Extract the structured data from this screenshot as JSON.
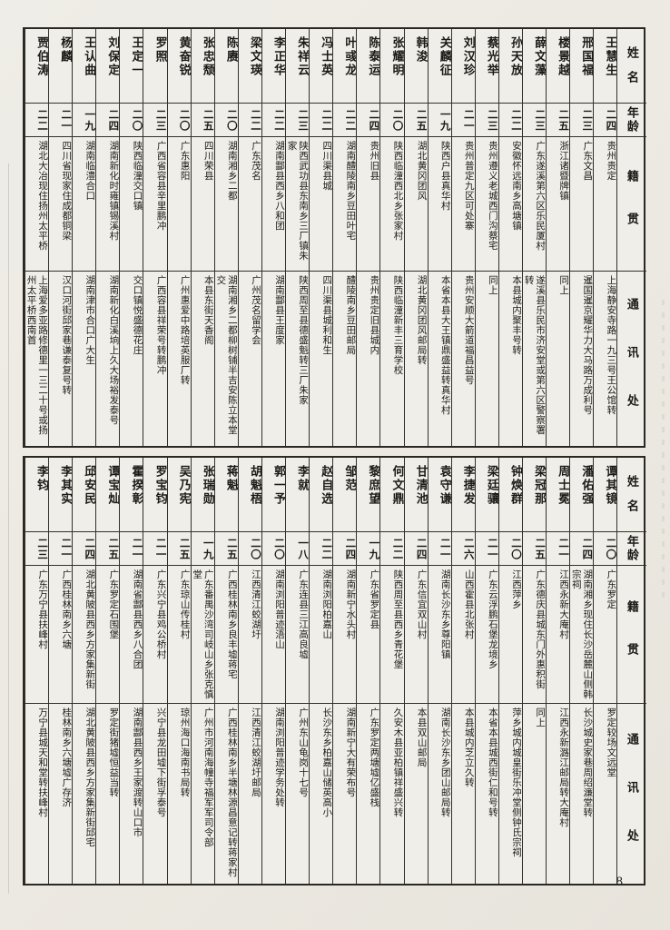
{
  "page": {
    "number": "8"
  },
  "headers": {
    "name": "姓名",
    "age": "年龄",
    "origin": "籍贯",
    "address": "通讯处"
  },
  "sections": [
    {
      "people": [
        {
          "name": "王慧生",
          "age": "二四",
          "origin": "贵州贵定",
          "address": "上海静安寺路一九三号王公馆转"
        },
        {
          "name": "邢国福",
          "age": "二三",
          "origin": "广东文昌",
          "address": "暹国暹京耀华力大马路万成利号"
        },
        {
          "name": "楼景越",
          "age": "二五",
          "origin": "浙江诸暨牌镇",
          "address": "同上"
        },
        {
          "name": "薛文藻",
          "age": "二三",
          "origin": "广东遂溪第六区乐民厦村",
          "address": "遂溪县乐民市济安堂或第六区警察署转"
        },
        {
          "name": "孙天放",
          "age": "二二",
          "origin": "安徽怀远南乡高塘镇",
          "address": "本县城内聚丰号转"
        },
        {
          "name": "蔡光举",
          "age": "二三",
          "origin": "贵州遵义老城西门沟蔡宅",
          "address": "同上"
        },
        {
          "name": "刘汉珍",
          "age": "二一",
          "origin": "贵州普定九区可处寨",
          "address": "贵州安顺大箭道福昌益号"
        },
        {
          "name": "关麟征",
          "age": "一九",
          "origin": "陕西户县真华村",
          "address": "本省本县大王镇鼎盛益转真华村"
        },
        {
          "name": "韩浚",
          "age": "二五",
          "origin": "湖北黄冈团风",
          "address": "湖北黄冈团风邮局转"
        },
        {
          "name": "张耀明",
          "age": "二〇",
          "origin": "陕西临潼西北乡张家村",
          "address": "陕西临潼新丰三育学校"
        },
        {
          "name": "陈泰运",
          "age": "二四",
          "origin": "贵州旧县",
          "address": "贵州贵定旧县城内"
        },
        {
          "name": "叶彧龙",
          "age": "二二",
          "origin": "湖南醴陵南乡豆田叶宅",
          "address": "醴陵南乡豆田邮局"
        },
        {
          "name": "冯士英",
          "age": "二二",
          "origin": "四川渠县城",
          "address": "四川渠县城利和生"
        },
        {
          "name": "朱祥云",
          "age": "二三",
          "origin": "陕西武功县东南乡三厂镇朱家",
          "address": "陕西周至县德盛魁转三厂朱家"
        },
        {
          "name": "李正华",
          "age": "二二",
          "origin": "湖南酃县西乡八和团",
          "address": "湖南酃县王度家"
        },
        {
          "name": "梁文瑛",
          "age": "二二",
          "origin": "广东茂名",
          "address": "广州茂名留学会"
        },
        {
          "name": "陈赓",
          "age": "二〇",
          "origin": "湖南湘乡二都",
          "address": "湖南湘乡二都柳树铺半吉安陈立本堂交"
        },
        {
          "name": "张忠颓",
          "age": "二五",
          "origin": "四川荣县",
          "address": "本县东街天香阁"
        },
        {
          "name": "黄奋锐",
          "age": "二〇",
          "origin": "广东惠阳",
          "address": "广州惠爱中路培英服厂转"
        },
        {
          "name": "罗照",
          "age": "二三",
          "origin": "广西省容县辛里鹏冲",
          "address": "广西容县祥荣号转鹏冲"
        },
        {
          "name": "王定一",
          "age": "二〇",
          "origin": "陕西临潼交口镇",
          "address": "交口镇悦盛德花庄"
        },
        {
          "name": "刘保定",
          "age": "二四",
          "origin": "湖南新化时雍镇锡溪村",
          "address": "湖南新化白溪垧上久大场裕发泰号"
        },
        {
          "name": "王认曲",
          "age": "一九",
          "origin": "湖南临澧合口",
          "address": "湖南津市合口广大生"
        },
        {
          "name": "杨麟",
          "age": "二一",
          "origin": "四川省现家住成都铜梁",
          "address": "汉口河街邱家巷谦泰复号转"
        },
        {
          "name": "贾伯涛",
          "age": "二二",
          "origin": "湖北大冶现住扬州太平桥",
          "address": "上海爱多亚路修德里一三二十号或扬州太平桥西南首"
        }
      ]
    },
    {
      "people": [
        {
          "name": "谭其镜",
          "age": "二〇",
          "origin": "广东罗定",
          "address": "罗定较场文远堂"
        },
        {
          "name": "潘佑强",
          "age": "二四",
          "origin": "湖南湘乡现住长沙岳麓山侧韩宗祠",
          "address": "长沙城史家巷周绍濂堂转"
        },
        {
          "name": "周士冕",
          "age": "二一",
          "origin": "江西永新大庵村",
          "address": "江西永新潞江邮局转大庵村"
        },
        {
          "name": "梁冠那",
          "age": "二五",
          "origin": "广东德庆县城东门外惠积街",
          "address": "同上"
        },
        {
          "name": "钟焕群",
          "age": "二〇",
          "origin": "江西萍乡",
          "address": "萍乡城内城皇街乐冲堂侧钟氏宗祠"
        },
        {
          "name": "梁廷骧",
          "age": "二一",
          "origin": "广东云浮鹏石堡龙境乡",
          "address": "本省本县城西街仁和号转"
        },
        {
          "name": "李捷发",
          "age": "二六",
          "origin": "山西霍县北张村",
          "address": "本县城内芝立久转"
        },
        {
          "name": "袁守谦",
          "age": "二一",
          "origin": "湖南长沙东乡尊阳镇",
          "address": "湖南长沙东乡团山邮局转"
        },
        {
          "name": "甘清池",
          "age": "二四",
          "origin": "广东信宜双山村",
          "address": "本县双山邮局"
        },
        {
          "name": "何文鼎",
          "age": "二二",
          "origin": "陕西周至县西乡青花堡",
          "address": "久安木县亚柏镇祥盛兴转"
        },
        {
          "name": "黎庶望",
          "age": "一九",
          "origin": "广东省罗定县",
          "address": "广东罗定两塘墟亿盛栈"
        },
        {
          "name": "邹范",
          "age": "二四",
          "origin": "湖南新宁水头村",
          "address": "湖南新宁大有荣布号"
        },
        {
          "name": "赵自选",
          "age": "二二",
          "origin": "湖南浏阳柏嘉山",
          "address": "长沙东乡柏嘉山储英高小"
        },
        {
          "name": "李就",
          "age": "一八",
          "origin": "广东连县三江高良墟",
          "address": "广州东山龟岗十七号"
        },
        {
          "name": "郭一予",
          "age": "二〇",
          "origin": "湖南浏阳普迹浯山",
          "address": "湖南浏阳普迹学务处转"
        },
        {
          "name": "胡魁梧",
          "age": "二〇",
          "origin": "江西清江蛟湖圩",
          "address": "江西清江蛟湖圩邮局"
        },
        {
          "name": "蒋魁",
          "age": "二五",
          "origin": "广西桂林南乡良丰墟蒋宅",
          "address": "广西桂林南乡半塘林源昌意记转蒋家村"
        },
        {
          "name": "张瑞勋",
          "age": "一九",
          "origin": "广东番禺沙湾司岐山乡张克慎堂",
          "address": "广州市河南海幢寺福军军司令部"
        },
        {
          "name": "吴乃宪",
          "age": "二五",
          "origin": "广东琼山传桂村",
          "address": "琼州海口海南书局转"
        },
        {
          "name": "罗宝钧",
          "age": "二一",
          "origin": "广东兴宁县鸡公桥村",
          "address": "兴宁县龙田墟下街孚泰号"
        },
        {
          "name": "霍揆彰",
          "age": "二一",
          "origin": "湖南省酃县西乡八合团",
          "address": "湖南酃县西乡王家渡转山口市"
        },
        {
          "name": "谭宝灿",
          "age": "二五",
          "origin": "广东罗定石围堡",
          "address": "罗定街猪墟恒益当转"
        },
        {
          "name": "邱安民",
          "age": "二四",
          "origin": "湖北黄陂县西乡方家集新街",
          "address": "湖北黄陂县西乡方家集新街邱宅"
        },
        {
          "name": "李其实",
          "age": "二一",
          "origin": "广西桂林南乡六塘",
          "address": "桂林南乡六塘墟广存济"
        },
        {
          "name": "李钧",
          "age": "二三",
          "origin": "广东万宁县扶峰村",
          "address": "万宁县城天和堂转扶峰村"
        }
      ]
    }
  ]
}
